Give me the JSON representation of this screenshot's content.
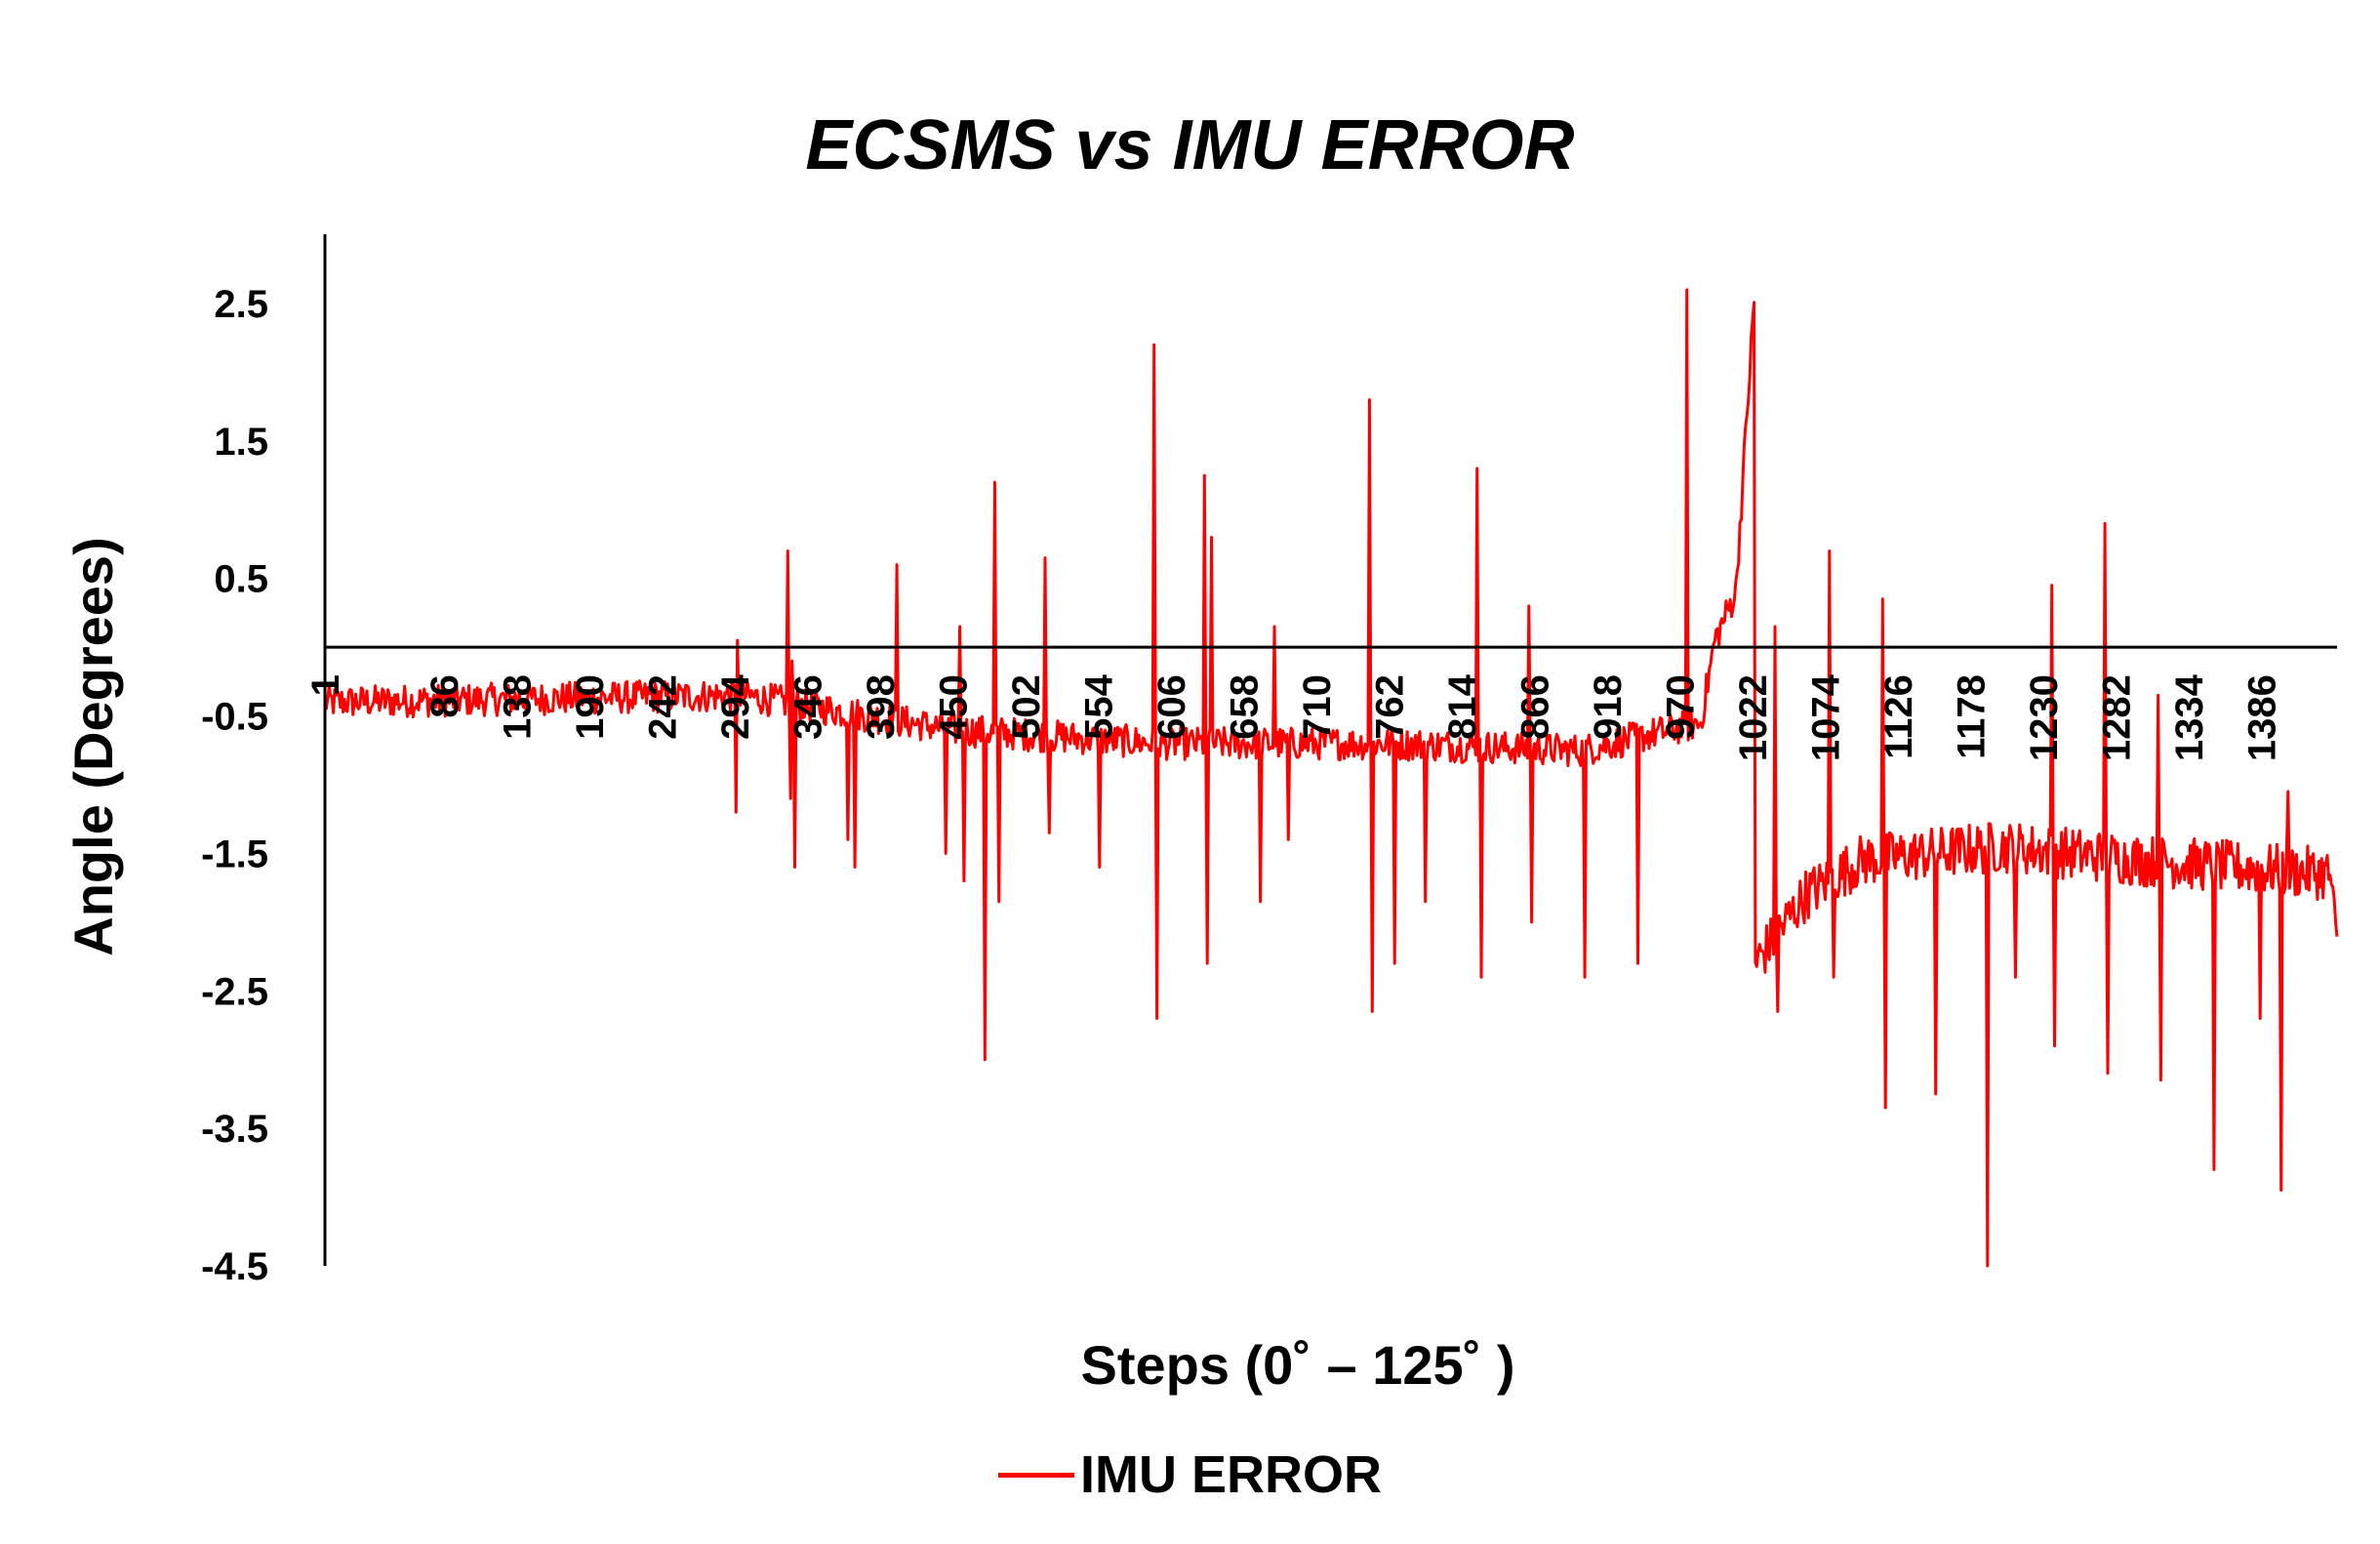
{
  "chart_data": {
    "type": "line",
    "title": "ECSMS vs IMU ERROR",
    "xlabel": "Steps (0˚ – 125˚ )",
    "ylabel": "Angle (Degrees)",
    "ylim": [
      -4.5,
      3.0
    ],
    "xlim": [
      1,
      1440
    ],
    "y_ticks": [
      "2.5",
      "1.5",
      "0.5",
      "-0.5",
      "-1.5",
      "-2.5",
      "-3.5",
      "-4.5"
    ],
    "x_ticks": [
      "1",
      "86",
      "138",
      "190",
      "242",
      "294",
      "346",
      "398",
      "450",
      "502",
      "554",
      "606",
      "658",
      "710",
      "762",
      "814",
      "866",
      "918",
      "970",
      "1022",
      "1074",
      "1126",
      "1178",
      "1230",
      "1282",
      "1334",
      "1386"
    ],
    "grid": false,
    "legend_position": "bottom",
    "series": [
      {
        "name": "IMU ERROR",
        "color": "#ff0000",
        "baseline": [
          [
            1,
            -0.4
          ],
          [
            300,
            -0.35
          ],
          [
            450,
            -0.6
          ],
          [
            600,
            -0.7
          ],
          [
            760,
            -0.7
          ],
          [
            900,
            -0.75
          ],
          [
            985,
            -0.55
          ],
          [
            995,
            0.05
          ],
          [
            1010,
            0.4
          ],
          [
            1023,
            2.5
          ],
          [
            1024,
            -2.3
          ],
          [
            1060,
            -1.8
          ],
          [
            1100,
            -1.55
          ],
          [
            1200,
            -1.45
          ],
          [
            1300,
            -1.55
          ],
          [
            1435,
            -1.65
          ],
          [
            1440,
            -2.2
          ]
        ],
        "noise": 0.12,
        "spikes": [
          [
            295,
            -1.2
          ],
          [
            296,
            0.05
          ],
          [
            332,
            0.7
          ],
          [
            334,
            -1.1
          ],
          [
            335,
            -0.1
          ],
          [
            337,
            -1.6
          ],
          [
            375,
            -1.4
          ],
          [
            380,
            -1.6
          ],
          [
            410,
            0.6
          ],
          [
            445,
            -1.5
          ],
          [
            455,
            0.15
          ],
          [
            458,
            -1.7
          ],
          [
            473,
            -3.0
          ],
          [
            480,
            1.2
          ],
          [
            483,
            -1.85
          ],
          [
            516,
            0.65
          ],
          [
            519,
            -1.35
          ],
          [
            555,
            -1.6
          ],
          [
            594,
            2.2
          ],
          [
            596,
            -2.7
          ],
          [
            630,
            1.25
          ],
          [
            632,
            -2.3
          ],
          [
            635,
            0.8
          ],
          [
            670,
            -1.85
          ],
          [
            680,
            0.15
          ],
          [
            690,
            -1.4
          ],
          [
            748,
            1.8
          ],
          [
            750,
            -2.65
          ],
          [
            766,
            -2.3
          ],
          [
            788,
            -1.85
          ],
          [
            825,
            1.3
          ],
          [
            828,
            -2.4
          ],
          [
            862,
            0.3
          ],
          [
            864,
            -2.0
          ],
          [
            902,
            -2.4
          ],
          [
            940,
            -2.3
          ],
          [
            975,
            2.6
          ],
          [
            1038,
            0.15
          ],
          [
            1040,
            -2.65
          ],
          [
            1077,
            0.7
          ],
          [
            1080,
            -2.4
          ],
          [
            1115,
            0.35
          ],
          [
            1117,
            -3.35
          ],
          [
            1153,
            -3.25
          ],
          [
            1190,
            -4.5
          ],
          [
            1210,
            -2.4
          ],
          [
            1236,
            0.45
          ],
          [
            1238,
            -2.9
          ],
          [
            1274,
            0.9
          ],
          [
            1276,
            -3.1
          ],
          [
            1312,
            -0.35
          ],
          [
            1314,
            -3.15
          ],
          [
            1352,
            -3.8
          ],
          [
            1385,
            -2.7
          ],
          [
            1400,
            -3.95
          ],
          [
            1405,
            -1.05
          ]
        ]
      }
    ]
  },
  "legend": {
    "label": "IMU ERROR"
  }
}
